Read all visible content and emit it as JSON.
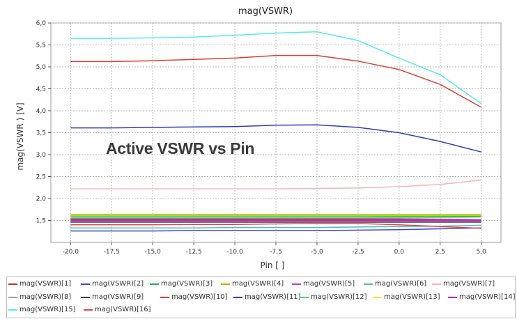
{
  "chart_data": {
    "type": "line",
    "title": "mag(VSWR)",
    "xlabel": "Pin [ ]",
    "ylabel": "mag(VSWR ) [V]",
    "annotation": "Active VSWR vs Pin",
    "xlim": [
      -21.2,
      6.2
    ],
    "ylim": [
      1.0,
      6.0
    ],
    "x_ticks": [
      -20,
      -17.5,
      -15,
      -12.5,
      -10,
      -7.5,
      -5,
      -2.5,
      0,
      2.5,
      5
    ],
    "x_tick_labels": [
      "-20,0",
      "-17,5",
      "-15,0",
      "-12,5",
      "-10,0",
      "-7,5",
      "-5,0",
      "-2,5",
      "0,0",
      "2,5",
      "5,0"
    ],
    "y_ticks": [
      1.5,
      2.0,
      2.5,
      3.0,
      3.5,
      4.0,
      4.5,
      5.0,
      5.5,
      6.0
    ],
    "y_tick_labels": [
      "1,5",
      "2,0",
      "2,5",
      "3,0",
      "3,5",
      "4,0",
      "4,5",
      "5,0",
      "5,5",
      "6,0"
    ],
    "grid": true,
    "legend_position": "bottom",
    "x": [
      -20,
      -17.5,
      -15,
      -12.5,
      -10,
      -7.5,
      -5,
      -2.5,
      0,
      2.5,
      5
    ],
    "series": [
      {
        "name": "mag(VSWR)[1]",
        "color": "#b03a2e",
        "values": [
          1.52,
          1.52,
          1.52,
          1.52,
          1.52,
          1.52,
          1.52,
          1.52,
          1.52,
          1.51,
          1.5
        ]
      },
      {
        "name": "mag(VSWR)[2]",
        "color": "#3f48cc",
        "values": [
          1.26,
          1.26,
          1.26,
          1.27,
          1.27,
          1.27,
          1.27,
          1.28,
          1.29,
          1.31,
          1.33
        ]
      },
      {
        "name": "mag(VSWR)[3]",
        "color": "#22b14c",
        "values": [
          1.6,
          1.6,
          1.6,
          1.6,
          1.6,
          1.6,
          1.6,
          1.6,
          1.6,
          1.6,
          1.6
        ]
      },
      {
        "name": "mag(VSWR)[4]",
        "color": "#b5b500",
        "values": [
          1.64,
          1.64,
          1.64,
          1.64,
          1.64,
          1.64,
          1.64,
          1.64,
          1.64,
          1.64,
          1.64
        ]
      },
      {
        "name": "mag(VSWR)[5]",
        "color": "#c33ac3",
        "values": [
          1.54,
          1.54,
          1.54,
          1.54,
          1.54,
          1.54,
          1.54,
          1.54,
          1.54,
          1.53,
          1.52
        ]
      },
      {
        "name": "mag(VSWR)[6]",
        "color": "#4ab8c8",
        "values": [
          1.33,
          1.33,
          1.33,
          1.33,
          1.34,
          1.34,
          1.34,
          1.35,
          1.36,
          1.37,
          1.39
        ]
      },
      {
        "name": "mag(VSWR)[7]",
        "color": "#f4b6b6",
        "values": [
          2.22,
          2.22,
          2.22,
          2.22,
          2.22,
          2.22,
          2.23,
          2.24,
          2.27,
          2.32,
          2.42
        ]
      },
      {
        "name": "mag(VSWR)[8]",
        "color": "#a0a0a0",
        "values": [
          1.48,
          1.48,
          1.48,
          1.48,
          1.48,
          1.48,
          1.48,
          1.48,
          1.48,
          1.48,
          1.48
        ]
      },
      {
        "name": "mag(VSWR)[9]",
        "color": "#404040",
        "values": [
          1.46,
          1.46,
          1.46,
          1.46,
          1.46,
          1.46,
          1.46,
          1.46,
          1.46,
          1.46,
          1.46
        ]
      },
      {
        "name": "mag(VSWR)[10]",
        "color": "#e03c31",
        "values": [
          5.12,
          5.12,
          5.14,
          5.17,
          5.2,
          5.26,
          5.26,
          5.13,
          4.94,
          4.6,
          4.08
        ]
      },
      {
        "name": "mag(VSWR)[11]",
        "color": "#2e3eb8",
        "values": [
          3.61,
          3.61,
          3.62,
          3.63,
          3.64,
          3.67,
          3.68,
          3.62,
          3.5,
          3.3,
          3.06
        ]
      },
      {
        "name": "mag(VSWR)[12]",
        "color": "#4cd94c",
        "values": [
          1.56,
          1.56,
          1.56,
          1.56,
          1.56,
          1.56,
          1.56,
          1.56,
          1.57,
          1.57,
          1.58
        ]
      },
      {
        "name": "mag(VSWR)[13]",
        "color": "#e8e84c",
        "values": [
          1.62,
          1.62,
          1.62,
          1.62,
          1.62,
          1.62,
          1.62,
          1.62,
          1.62,
          1.62,
          1.62
        ]
      },
      {
        "name": "mag(VSWR)[14]",
        "color": "#d11ad1",
        "values": [
          1.5,
          1.5,
          1.5,
          1.5,
          1.5,
          1.5,
          1.5,
          1.5,
          1.5,
          1.5,
          1.5
        ]
      },
      {
        "name": "mag(VSWR)[15]",
        "color": "#55eaf2",
        "values": [
          5.65,
          5.65,
          5.66,
          5.68,
          5.72,
          5.77,
          5.8,
          5.6,
          5.2,
          4.82,
          4.16
        ]
      },
      {
        "name": "mag(VSWR)[16]",
        "color": "#e04848",
        "values": [
          1.4,
          1.4,
          1.4,
          1.41,
          1.41,
          1.42,
          1.43,
          1.43,
          1.4,
          1.36,
          1.32
        ]
      }
    ]
  }
}
